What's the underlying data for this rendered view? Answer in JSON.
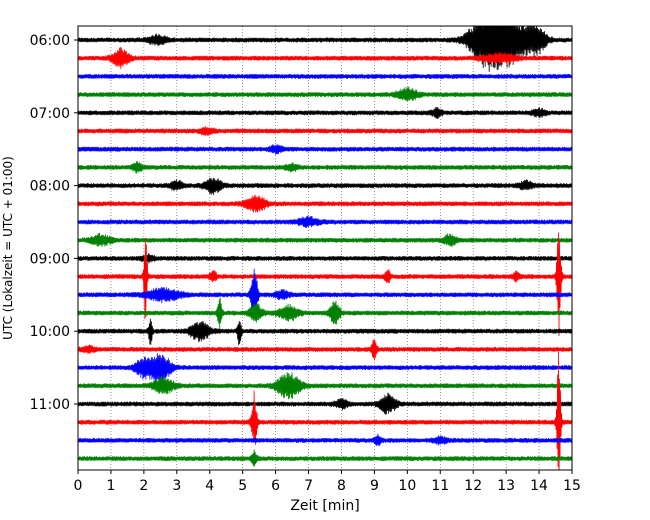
{
  "chart_data": {
    "type": "line",
    "xlabel": "Zeit  [min]",
    "ylabel": "UTC (Lokalzeit = UTC + 01:00)",
    "xlim": [
      0,
      15
    ],
    "x_ticks": [
      0,
      1,
      2,
      3,
      4,
      5,
      6,
      7,
      8,
      9,
      10,
      11,
      12,
      13,
      14,
      15
    ],
    "x_tick_labels": [
      "0",
      "1",
      "2",
      "3",
      "4",
      "5",
      "6",
      "7",
      "8",
      "9",
      "10",
      "11",
      "12",
      "13",
      "14",
      "15"
    ],
    "y_tick_labels": [
      "06:00",
      "07:00",
      "08:00",
      "09:00",
      "10:00",
      "11:00"
    ],
    "y_tick_rows": [
      0,
      4,
      8,
      12,
      16,
      20
    ],
    "grid": "vertical dotted",
    "trace_colors": [
      "#000000",
      "#ff0000",
      "#0000ff",
      "#008000"
    ],
    "traces": [
      {
        "start": "06:00",
        "color": "#000000",
        "noise": 1.0,
        "events": [
          {
            "t": 2.4,
            "a": 4,
            "w": 0.3
          },
          {
            "t": 12.4,
            "a": 26,
            "w": 0.5
          },
          {
            "t": 13.1,
            "a": 22,
            "w": 0.5
          },
          {
            "t": 13.9,
            "a": 14,
            "w": 0.3
          }
        ]
      },
      {
        "start": "06:15",
        "color": "#ff0000",
        "noise": 1.0,
        "events": [
          {
            "t": 1.3,
            "a": 9,
            "w": 0.25
          },
          {
            "t": 12.8,
            "a": 4,
            "w": 0.5
          }
        ]
      },
      {
        "start": "06:30",
        "color": "#0000ff",
        "noise": 1.0,
        "events": []
      },
      {
        "start": "06:45",
        "color": "#008000",
        "noise": 1.0,
        "events": [
          {
            "t": 10.0,
            "a": 6,
            "w": 0.3
          }
        ]
      },
      {
        "start": "07:00",
        "color": "#000000",
        "noise": 1.0,
        "events": [
          {
            "t": 10.9,
            "a": 4,
            "w": 0.15
          },
          {
            "t": 14.0,
            "a": 3,
            "w": 0.2
          }
        ]
      },
      {
        "start": "07:15",
        "color": "#ff0000",
        "noise": 1.0,
        "events": [
          {
            "t": 3.9,
            "a": 3,
            "w": 0.2
          }
        ]
      },
      {
        "start": "07:30",
        "color": "#0000ff",
        "noise": 1.0,
        "events": [
          {
            "t": 6.0,
            "a": 3,
            "w": 0.2
          }
        ]
      },
      {
        "start": "07:45",
        "color": "#008000",
        "noise": 1.0,
        "events": [
          {
            "t": 1.8,
            "a": 4,
            "w": 0.15
          },
          {
            "t": 6.5,
            "a": 3,
            "w": 0.2
          }
        ]
      },
      {
        "start": "08:00",
        "color": "#000000",
        "noise": 1.0,
        "events": [
          {
            "t": 3.0,
            "a": 4,
            "w": 0.2
          },
          {
            "t": 4.1,
            "a": 7,
            "w": 0.25
          },
          {
            "t": 13.6,
            "a": 4,
            "w": 0.2
          }
        ]
      },
      {
        "start": "08:15",
        "color": "#ff0000",
        "noise": 1.0,
        "events": [
          {
            "t": 5.4,
            "a": 8,
            "w": 0.3
          }
        ]
      },
      {
        "start": "08:30",
        "color": "#0000ff",
        "noise": 1.0,
        "events": [
          {
            "t": 7.0,
            "a": 4,
            "w": 0.3
          }
        ]
      },
      {
        "start": "08:45",
        "color": "#008000",
        "noise": 1.0,
        "events": [
          {
            "t": 0.7,
            "a": 5,
            "w": 0.3
          },
          {
            "t": 11.3,
            "a": 5,
            "w": 0.2
          }
        ]
      },
      {
        "start": "09:00",
        "color": "#000000",
        "noise": 1.0,
        "events": [
          {
            "t": 2.1,
            "a": 3,
            "w": 0.2
          }
        ]
      },
      {
        "start": "09:15",
        "color": "#ff0000",
        "noise": 1.0,
        "events": [
          {
            "t": 2.05,
            "a": 50,
            "w": 0.05
          },
          {
            "t": 4.1,
            "a": 5,
            "w": 0.1
          },
          {
            "t": 9.4,
            "a": 7,
            "w": 0.08
          },
          {
            "t": 13.3,
            "a": 4,
            "w": 0.1
          },
          {
            "t": 14.6,
            "a": 60,
            "w": 0.06
          }
        ]
      },
      {
        "start": "09:30",
        "color": "#0000ff",
        "noise": 1.0,
        "events": [
          {
            "t": 2.6,
            "a": 6,
            "w": 0.5
          },
          {
            "t": 5.35,
            "a": 26,
            "w": 0.1
          },
          {
            "t": 6.2,
            "a": 4,
            "w": 0.2
          }
        ]
      },
      {
        "start": "09:45",
        "color": "#008000",
        "noise": 1.0,
        "events": [
          {
            "t": 4.3,
            "a": 20,
            "w": 0.06
          },
          {
            "t": 5.4,
            "a": 8,
            "w": 0.2
          },
          {
            "t": 6.4,
            "a": 7,
            "w": 0.3
          },
          {
            "t": 7.8,
            "a": 12,
            "w": 0.15
          }
        ]
      },
      {
        "start": "10:00",
        "color": "#000000",
        "noise": 1.0,
        "events": [
          {
            "t": 2.2,
            "a": 12,
            "w": 0.06
          },
          {
            "t": 3.7,
            "a": 9,
            "w": 0.3
          },
          {
            "t": 4.9,
            "a": 14,
            "w": 0.06
          }
        ]
      },
      {
        "start": "10:15",
        "color": "#ff0000",
        "noise": 1.0,
        "events": [
          {
            "t": 0.3,
            "a": 3,
            "w": 0.2
          },
          {
            "t": 9.0,
            "a": 10,
            "w": 0.08
          }
        ]
      },
      {
        "start": "10:30",
        "color": "#0000ff",
        "noise": 1.0,
        "events": [
          {
            "t": 2.0,
            "a": 9,
            "w": 0.25
          },
          {
            "t": 2.5,
            "a": 14,
            "w": 0.3
          }
        ]
      },
      {
        "start": "10:45",
        "color": "#008000",
        "noise": 1.0,
        "events": [
          {
            "t": 2.6,
            "a": 8,
            "w": 0.3
          },
          {
            "t": 6.4,
            "a": 12,
            "w": 0.35
          }
        ]
      },
      {
        "start": "11:00",
        "color": "#000000",
        "noise": 1.0,
        "events": [
          {
            "t": 8.0,
            "a": 4,
            "w": 0.2
          },
          {
            "t": 9.4,
            "a": 9,
            "w": 0.25
          }
        ]
      },
      {
        "start": "11:15",
        "color": "#ff0000",
        "noise": 1.0,
        "events": [
          {
            "t": 5.35,
            "a": 30,
            "w": 0.08
          },
          {
            "t": 14.6,
            "a": 70,
            "w": 0.06
          }
        ]
      },
      {
        "start": "11:30",
        "color": "#0000ff",
        "noise": 1.0,
        "events": [
          {
            "t": 9.1,
            "a": 5,
            "w": 0.1
          },
          {
            "t": 11.0,
            "a": 3,
            "w": 0.2
          }
        ]
      },
      {
        "start": "11:45",
        "color": "#008000",
        "noise": 1.0,
        "events": [
          {
            "t": 5.35,
            "a": 8,
            "w": 0.08
          }
        ]
      }
    ]
  }
}
